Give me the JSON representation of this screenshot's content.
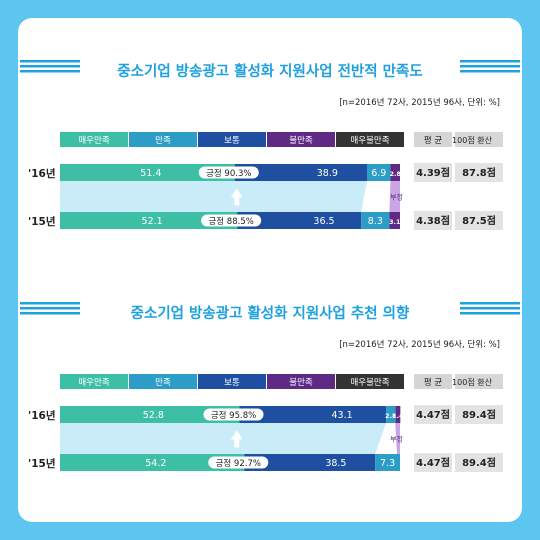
{
  "colors": {
    "background": "#5cc6f1",
    "title": "#1ea1df",
    "very_satisfied": "#3dbfa6",
    "satisfied": "#2b9dc6",
    "neutral": "#1e4fa0",
    "dissatisfied": "#5f2a86",
    "very_dissatisfied": "#333333",
    "header_gray": "#d5d5d5",
    "positive_band": "#c9ecf8",
    "negative_band": "#c9a5e3"
  },
  "chart_data": [
    {
      "type": "bar",
      "title": "중소기업 방송광고 활성화 지원사업 전반적 만족도",
      "note": "[n=2016년 72사, 2015년 96사, 단위: %]",
      "legend": [
        "매우만족",
        "만족",
        "보통",
        "불만족",
        "매우불만족"
      ],
      "score_headers": [
        "평 균",
        "100점 환산"
      ],
      "categories": [
        "'16년",
        "'15년"
      ],
      "series": [
        {
          "name": "매우만족",
          "values": [
            51.4,
            52.1
          ],
          "labels": [
            "51.4",
            "52.1"
          ]
        },
        {
          "name": "보통",
          "values": [
            38.9,
            36.5
          ],
          "labels": [
            "38.9",
            "36.5"
          ]
        },
        {
          "name": "불만족",
          "values": [
            6.9,
            8.3
          ],
          "labels": [
            "6.9",
            "8.3"
          ]
        },
        {
          "name": "매우불만족",
          "values": [
            2.8,
            3.1
          ],
          "labels": [
            "2.8",
            "3.1"
          ]
        }
      ],
      "positive": [
        "긍정 90.3%",
        "긍정 88.5%"
      ],
      "negative_label": "부정",
      "averages": [
        "4.39점",
        "4.38점"
      ],
      "scores100": [
        "87.8점",
        "87.5점"
      ]
    },
    {
      "type": "bar",
      "title": "중소기업 방송광고 활성화 지원사업 추천 의향",
      "note": "[n=2016년 72사, 2015년 96사, 단위: %]",
      "legend": [
        "매우만족",
        "만족",
        "보통",
        "불만족",
        "매우불만족"
      ],
      "score_headers": [
        "평 균",
        "100점 환산"
      ],
      "categories": [
        "'16년",
        "'15년"
      ],
      "series": [
        {
          "name": "매우만족",
          "values": [
            52.8,
            54.2
          ],
          "labels": [
            "52.8",
            "54.2"
          ]
        },
        {
          "name": "보통",
          "values": [
            43.1,
            38.5
          ],
          "labels": [
            "43.1",
            "38.5"
          ]
        },
        {
          "name": "불만족",
          "values": [
            2.8,
            7.3
          ],
          "labels": [
            "2.8",
            "7.3"
          ]
        },
        {
          "name": "매우불만족",
          "values": [
            1.4,
            0
          ],
          "labels": [
            "1.4",
            ""
          ]
        }
      ],
      "positive": [
        "긍정 95.8%",
        "긍정 92.7%"
      ],
      "negative_label": "부정",
      "averages": [
        "4.47점",
        "4.47점"
      ],
      "scores100": [
        "89.4점",
        "89.4점"
      ]
    }
  ]
}
